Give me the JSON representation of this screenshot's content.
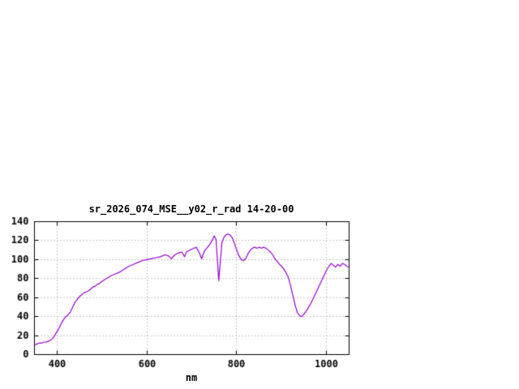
{
  "chart_data": {
    "type": "line",
    "title": "sr_2026_074_MSE__y02_r_rad 14-20-00",
    "xlabel": "nm",
    "ylabel": "",
    "xlim": [
      350,
      1050
    ],
    "ylim": [
      0,
      140
    ],
    "xticks": [
      400,
      600,
      800,
      1000
    ],
    "yticks": [
      0,
      20,
      40,
      60,
      80,
      100,
      120,
      140
    ],
    "grid": true,
    "line_color": "#9400d3",
    "grid_color": "#909090",
    "axis_color": "#000000",
    "x": [
      350,
      355,
      360,
      365,
      370,
      375,
      380,
      385,
      390,
      395,
      400,
      405,
      410,
      415,
      420,
      425,
      430,
      435,
      440,
      445,
      450,
      455,
      460,
      465,
      470,
      475,
      480,
      485,
      490,
      495,
      500,
      510,
      520,
      530,
      540,
      550,
      560,
      570,
      580,
      590,
      600,
      610,
      620,
      630,
      640,
      648,
      655,
      662,
      670,
      678,
      684,
      688,
      695,
      700,
      705,
      710,
      716,
      722,
      728,
      735,
      740,
      745,
      750,
      754,
      757,
      760,
      763,
      767,
      772,
      776,
      780,
      785,
      790,
      795,
      800,
      805,
      810,
      815,
      820,
      825,
      830,
      835,
      840,
      845,
      850,
      855,
      860,
      865,
      870,
      875,
      880,
      885,
      890,
      895,
      900,
      905,
      910,
      915,
      920,
      925,
      930,
      935,
      940,
      945,
      950,
      955,
      960,
      965,
      970,
      975,
      980,
      985,
      990,
      995,
      1000,
      1005,
      1010,
      1015,
      1020,
      1025,
      1030,
      1035,
      1040,
      1045,
      1050
    ],
    "y": [
      10,
      11,
      12,
      12,
      13,
      13,
      14,
      15,
      17,
      20,
      24,
      28,
      33,
      37,
      40,
      42,
      45,
      50,
      55,
      58,
      61,
      63,
      65,
      66,
      67,
      69,
      71,
      72,
      74,
      75,
      77,
      80,
      83,
      85,
      87,
      90,
      93,
      95,
      97,
      99,
      100,
      101,
      102,
      103,
      105,
      104,
      101,
      105,
      107,
      108,
      103,
      108,
      110,
      111,
      112,
      113,
      108,
      101,
      109,
      113,
      116,
      120,
      125,
      121,
      100,
      78,
      95,
      118,
      124,
      126,
      127,
      126,
      123,
      117,
      110,
      104,
      100,
      99,
      101,
      106,
      110,
      112,
      113,
      112,
      113,
      112,
      113,
      112,
      110,
      108,
      105,
      101,
      98,
      95,
      93,
      90,
      86,
      81,
      72,
      62,
      52,
      44,
      41,
      40,
      43,
      46,
      50,
      54,
      59,
      64,
      69,
      74,
      79,
      84,
      89,
      93,
      96,
      94,
      92,
      95,
      93,
      96,
      95,
      93,
      92
    ]
  }
}
